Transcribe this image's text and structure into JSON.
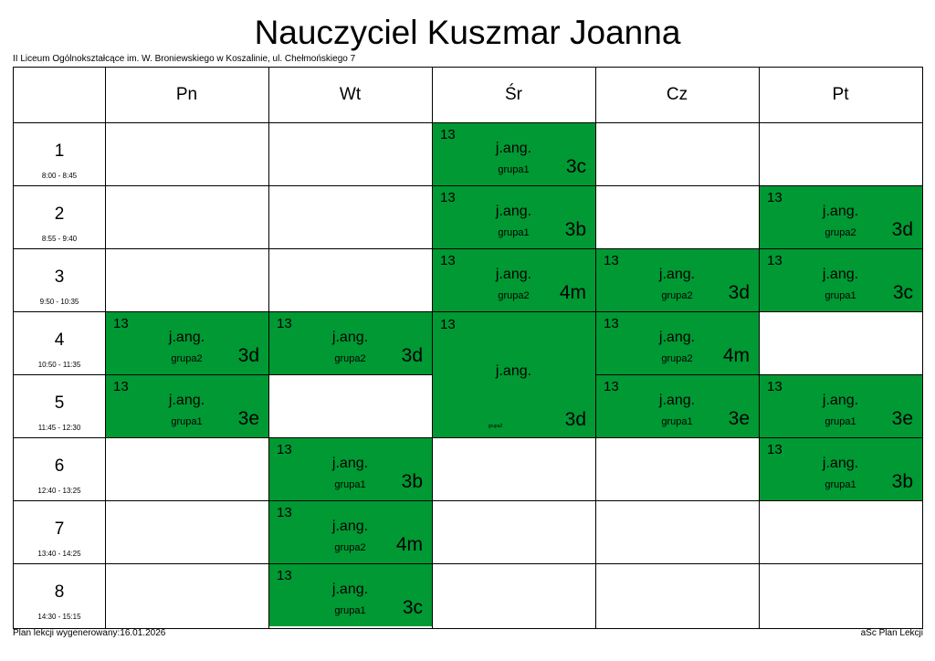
{
  "title": "Nauczyciel Kuszmar Joanna",
  "school": "II Liceum Ogólnokształcące im. W. Broniewskiego w Koszalinie, ul. Chełmońskiego 7",
  "days": [
    "Pn",
    "Wt",
    "Śr",
    "Cz",
    "Pt"
  ],
  "periods": [
    {
      "num": "1",
      "time": "8:00 - 8:45"
    },
    {
      "num": "2",
      "time": "8:55 - 9:40"
    },
    {
      "num": "3",
      "time": "9:50 - 10:35"
    },
    {
      "num": "4",
      "time": "10:50 - 11:35"
    },
    {
      "num": "5",
      "time": "11:45 - 12:30"
    },
    {
      "num": "6",
      "time": "12:40 - 13:25"
    },
    {
      "num": "7",
      "time": "13:40 - 14:25"
    },
    {
      "num": "8",
      "time": "14:30 - 15:15"
    }
  ],
  "lessons": [
    {
      "day": 2,
      "period": 1,
      "span": 1,
      "room": "13",
      "subject": "j.ang.",
      "group": "grupa1",
      "class": "3c"
    },
    {
      "day": 2,
      "period": 2,
      "span": 1,
      "room": "13",
      "subject": "j.ang.",
      "group": "grupa1",
      "class": "3b"
    },
    {
      "day": 4,
      "period": 2,
      "span": 1,
      "room": "13",
      "subject": "j.ang.",
      "group": "grupa2",
      "class": "3d"
    },
    {
      "day": 2,
      "period": 3,
      "span": 1,
      "room": "13",
      "subject": "j.ang.",
      "group": "grupa2",
      "class": "4m"
    },
    {
      "day": 3,
      "period": 3,
      "span": 1,
      "room": "13",
      "subject": "j.ang.",
      "group": "grupa2",
      "class": "3d"
    },
    {
      "day": 4,
      "period": 3,
      "span": 1,
      "room": "13",
      "subject": "j.ang.",
      "group": "grupa1",
      "class": "3c"
    },
    {
      "day": 0,
      "period": 4,
      "span": 1,
      "room": "13",
      "subject": "j.ang.",
      "group": "grupa2",
      "class": "3d"
    },
    {
      "day": 1,
      "period": 4,
      "span": 1,
      "room": "13",
      "subject": "j.ang.",
      "group": "grupa2",
      "class": "3d"
    },
    {
      "day": 2,
      "period": 4,
      "span": 2,
      "room": "13",
      "subject": "j.ang.",
      "group": "grupa2",
      "class": "3d"
    },
    {
      "day": 3,
      "period": 4,
      "span": 1,
      "room": "13",
      "subject": "j.ang.",
      "group": "grupa2",
      "class": "4m"
    },
    {
      "day": 0,
      "period": 5,
      "span": 1,
      "room": "13",
      "subject": "j.ang.",
      "group": "grupa1",
      "class": "3e"
    },
    {
      "day": 3,
      "period": 5,
      "span": 1,
      "room": "13",
      "subject": "j.ang.",
      "group": "grupa1",
      "class": "3e"
    },
    {
      "day": 4,
      "period": 5,
      "span": 1,
      "room": "13",
      "subject": "j.ang.",
      "group": "grupa1",
      "class": "3e"
    },
    {
      "day": 1,
      "period": 6,
      "span": 1,
      "room": "13",
      "subject": "j.ang.",
      "group": "grupa1",
      "class": "3b"
    },
    {
      "day": 4,
      "period": 6,
      "span": 1,
      "room": "13",
      "subject": "j.ang.",
      "group": "grupa1",
      "class": "3b"
    },
    {
      "day": 1,
      "period": 7,
      "span": 1,
      "room": "13",
      "subject": "j.ang.",
      "group": "grupa2",
      "class": "4m"
    },
    {
      "day": 1,
      "period": 8,
      "span": 1,
      "room": "13",
      "subject": "j.ang.",
      "group": "grupa1",
      "class": "3c"
    }
  ],
  "lesson_color": "#009933",
  "footer_left": "Plan lekcji wygenerowany:16.01.2026",
  "footer_right": "aSc Plan Lekcji"
}
